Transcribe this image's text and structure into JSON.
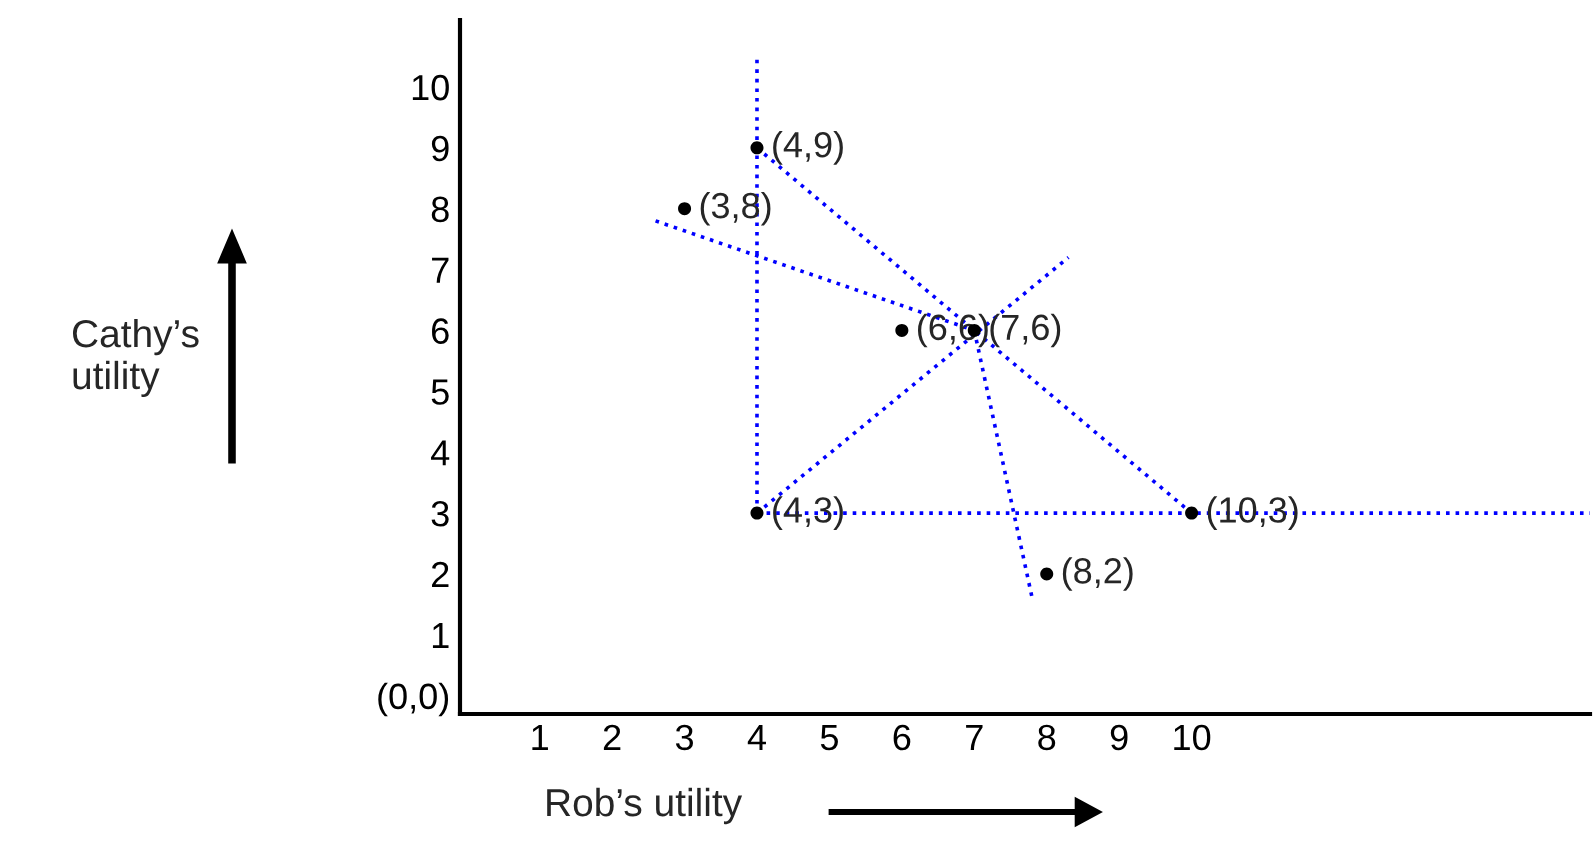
{
  "chart_data": {
    "type": "line",
    "xlabel": "Rob’s utility",
    "ylabel": "Cathy’s utility",
    "xlim": [
      -0.1,
      15.5
    ],
    "ylim": [
      -0.3,
      11.1
    ],
    "xticks": [
      1,
      2,
      3,
      4,
      5,
      6,
      7,
      8,
      9,
      10
    ],
    "yticks": [
      {
        "value": 0,
        "label": "(0,0)"
      },
      1,
      2,
      3,
      4,
      5,
      6,
      7,
      8,
      9,
      10
    ],
    "grid": false,
    "legend": false,
    "line_style": "dotted",
    "marker": "none",
    "series": [
      {
        "color": "#0000ff",
        "x": [
          4,
          4
        ],
        "values": [
          3,
          10.5
        ]
      },
      {
        "color": "#0000ff",
        "x": [
          4,
          15.5
        ],
        "values": [
          3,
          3
        ]
      },
      {
        "color": "#0000ff",
        "x": [
          4,
          10
        ],
        "values": [
          9,
          3
        ]
      },
      {
        "color": "#0000ff",
        "x": [
          2.6,
          7
        ],
        "values": [
          7.8,
          6
        ]
      },
      {
        "color": "#0000ff",
        "x": [
          7,
          7.8
        ],
        "values": [
          6,
          1.6
        ]
      },
      {
        "color": "#0000ff",
        "x": [
          4,
          8.3
        ],
        "values": [
          3,
          7.2
        ]
      },
      {
        "type": "scatter",
        "color": "#000000",
        "marker": "circle",
        "x": [
          4,
          3,
          6,
          7,
          4,
          8,
          10
        ],
        "values": [
          9,
          8,
          6,
          6,
          3,
          2,
          3
        ]
      }
    ],
    "annotations": [
      {
        "text": "(4,9)",
        "x": 4,
        "y": 9
      },
      {
        "text": "(3,8)",
        "x": 3,
        "y": 8
      },
      {
        "text": "(6,6)",
        "x": 6,
        "y": 6
      },
      {
        "text": "(7,6)",
        "x": 7,
        "y": 6
      },
      {
        "text": "(4,3)",
        "x": 4,
        "y": 3
      },
      {
        "text": "(8,2)",
        "x": 8,
        "y": 2
      },
      {
        "text": "(10,3)",
        "x": 10,
        "y": 3
      }
    ]
  }
}
